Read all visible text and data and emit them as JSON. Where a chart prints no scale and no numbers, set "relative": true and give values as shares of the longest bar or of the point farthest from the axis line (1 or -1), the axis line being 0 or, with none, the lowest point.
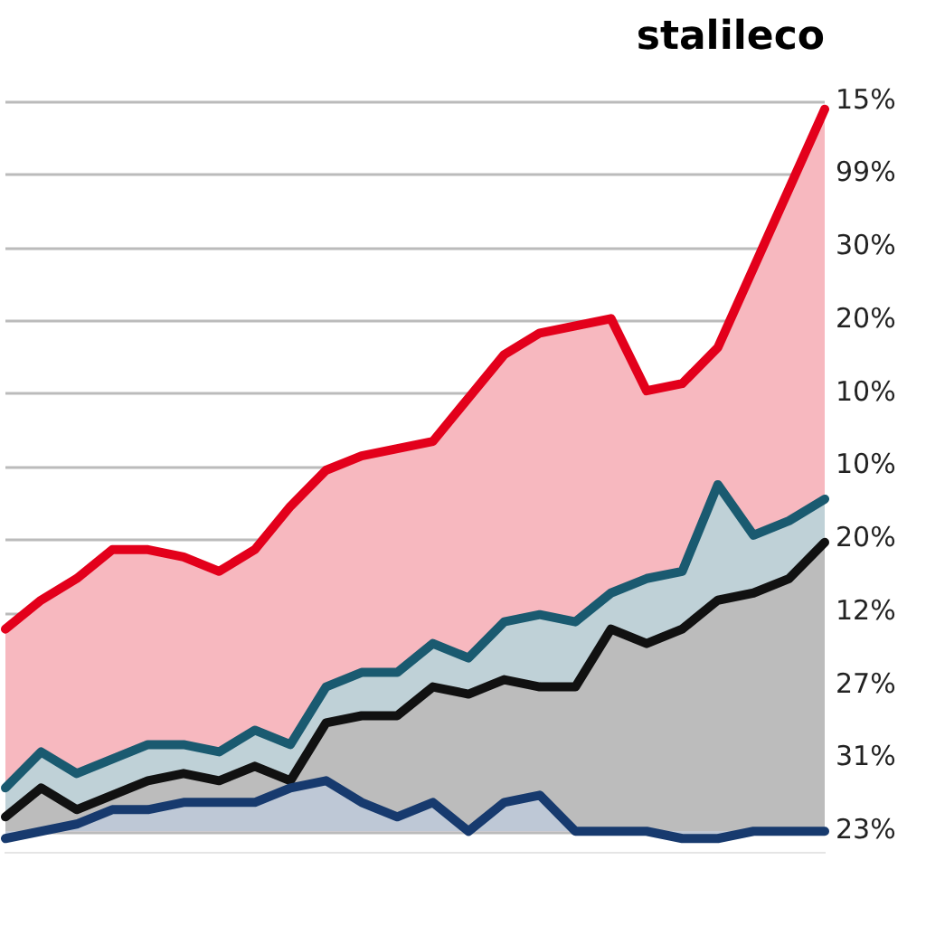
{
  "chart_data": {
    "type": "area",
    "title": "stalileco",
    "relative": true,
    "categories": [
      null,
      null,
      null,
      null,
      null,
      null,
      null,
      null,
      null,
      null,
      null,
      null,
      null,
      null,
      null,
      null,
      null,
      null,
      null,
      null,
      null,
      null,
      null,
      null
    ],
    "series": [
      {
        "color": "#e3001b",
        "values": [
          0.28,
          0.32,
          0.35,
          0.39,
          0.39,
          0.38,
          0.36,
          0.39,
          0.45,
          0.5,
          0.52,
          0.53,
          0.54,
          0.6,
          0.66,
          0.69,
          0.7,
          0.71,
          0.61,
          0.62,
          0.67,
          0.78,
          0.89,
          1
        ]
      },
      {
        "color": "#1a5a70",
        "values": [
          0.06,
          0.11,
          0.08,
          0.1,
          0.12,
          0.12,
          0.11,
          0.14,
          0.12,
          0.2,
          0.22,
          0.22,
          0.26,
          0.24,
          0.29,
          0.3,
          0.29,
          0.33,
          0.35,
          0.36,
          0.48,
          0.41,
          0.43,
          0.46
        ]
      },
      {
        "color": "#111111",
        "values": [
          0.02,
          0.06,
          0.03,
          0.05,
          0.07,
          0.08,
          0.07,
          0.09,
          0.07,
          0.15,
          0.16,
          0.16,
          0.2,
          0.19,
          0.21,
          0.2,
          0.2,
          0.28,
          0.26,
          0.28,
          0.32,
          0.33,
          0.35,
          0.4
        ]
      },
      {
        "color": "#173a6e",
        "values": [
          -0.01,
          0,
          0.01,
          0.03,
          0.03,
          0.04,
          0.04,
          0.04,
          0.06,
          0.07,
          0.04,
          0.02,
          0.04,
          0,
          0.04,
          0.05,
          0,
          0,
          0,
          -0.01,
          -0.01,
          0,
          0,
          0
        ]
      }
    ],
    "annotations": [
      "15%",
      "99%",
      "30%",
      "20%",
      "10%",
      "10%",
      "20%",
      "12%",
      "27%",
      "31%",
      "23%"
    ],
    "grid": "y",
    "legend": false,
    "marker": "none",
    "line_style": "solid"
  }
}
